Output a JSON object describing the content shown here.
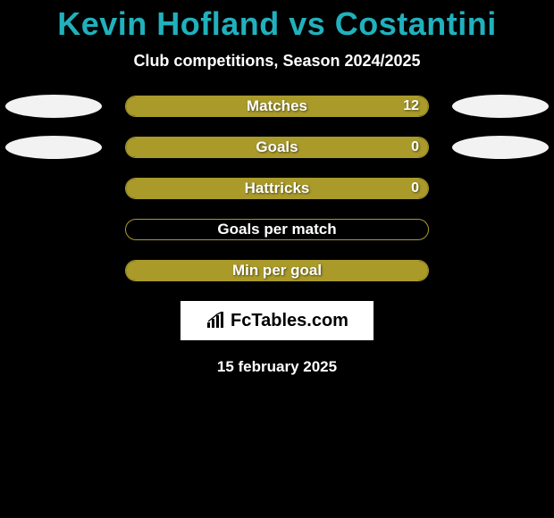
{
  "title": "Kevin Hofland vs Costantini",
  "title_color": "#20b1bd",
  "subtitle": "Club competitions, Season 2024/2025",
  "track_border_color": "#a99a2a",
  "bars": [
    {
      "label": "Matches",
      "value": "12",
      "fill_pct": 100,
      "fill_color": "#a99a2a",
      "left_ellipse_color": "#f2f2f2",
      "right_ellipse_color": "#f2f2f2",
      "show_value": true
    },
    {
      "label": "Goals",
      "value": "0",
      "fill_pct": 100,
      "fill_color": "#a99a2a",
      "left_ellipse_color": "#f2f2f2",
      "right_ellipse_color": "#f2f2f2",
      "show_value": true
    },
    {
      "label": "Hattricks",
      "value": "0",
      "fill_pct": 100,
      "fill_color": "#a99a2a",
      "left_ellipse_color": null,
      "right_ellipse_color": null,
      "show_value": true
    },
    {
      "label": "Goals per match",
      "value": "",
      "fill_pct": 0,
      "fill_color": "#a99a2a",
      "left_ellipse_color": null,
      "right_ellipse_color": null,
      "show_value": false
    },
    {
      "label": "Min per goal",
      "value": "",
      "fill_pct": 100,
      "fill_color": "#a99a2a",
      "left_ellipse_color": null,
      "right_ellipse_color": null,
      "show_value": false
    }
  ],
  "logo_text": "FcTables.com",
  "footer_date": "15 february 2025",
  "background_color": "#000000",
  "text_color": "#ffffff"
}
